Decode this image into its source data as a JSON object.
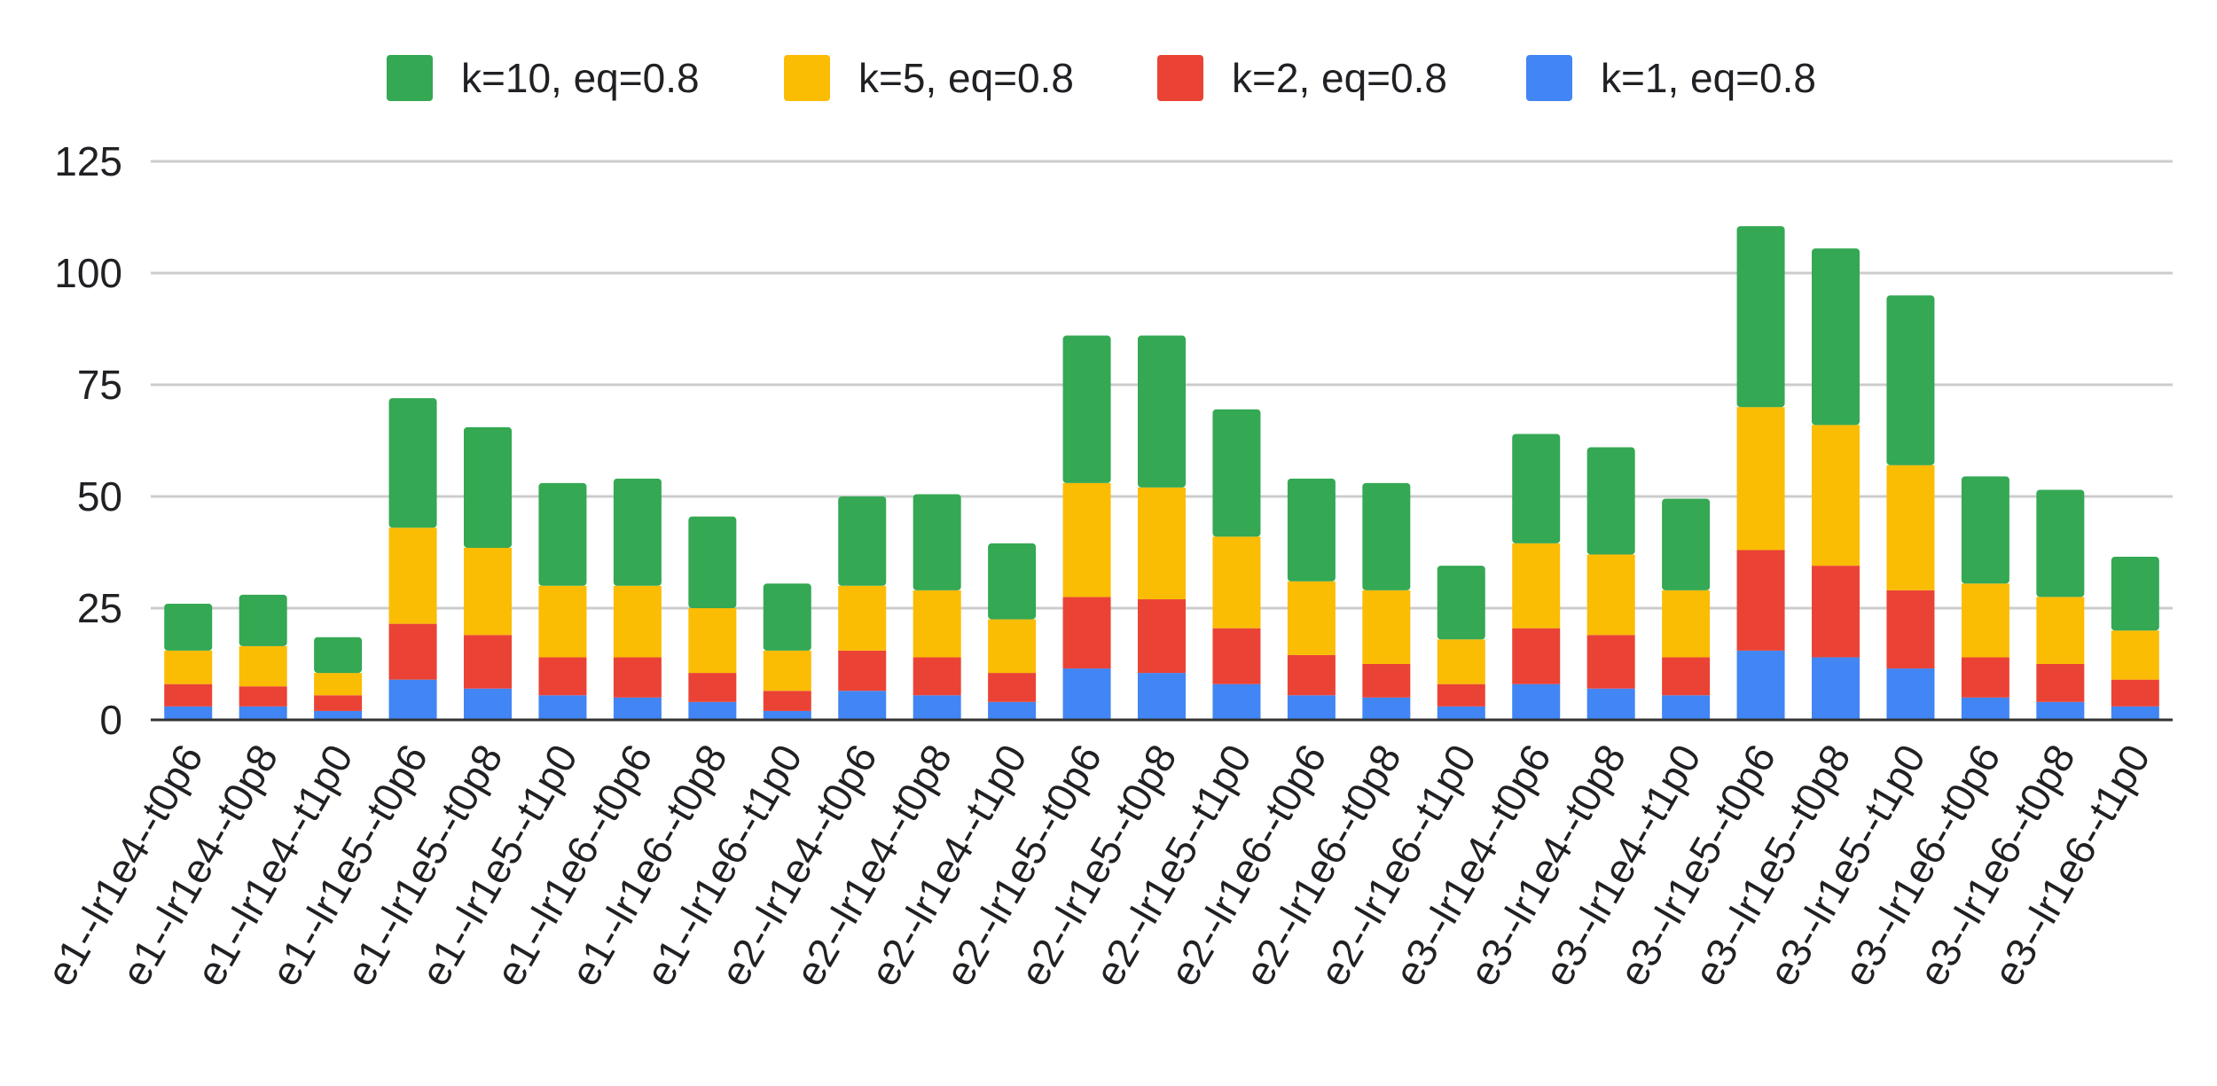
{
  "chart_data": {
    "type": "bar",
    "stacked": true,
    "title": "",
    "xlabel": "",
    "ylabel": "",
    "ylim": [
      0,
      125
    ],
    "yticks": [
      0,
      25,
      50,
      75,
      100,
      125
    ],
    "grid": true,
    "legend_position": "top",
    "categories": [
      "e1--lr1e4--t0p6",
      "e1--lr1e4--t0p8",
      "e1--lr1e4--t1p0",
      "e1--lr1e5--t0p6",
      "e1--lr1e5--t0p8",
      "e1--lr1e5--t1p0",
      "e1--lr1e6--t0p6",
      "e1--lr1e6--t0p8",
      "e1--lr1e6--t1p0",
      "e2--lr1e4--t0p6",
      "e2--lr1e4--t0p8",
      "e2--lr1e4--t1p0",
      "e2--lr1e5--t0p6",
      "e2--lr1e5--t0p8",
      "e2--lr1e5--t1p0",
      "e2--lr1e6--t0p6",
      "e2--lr1e6--t0p8",
      "e2--lr1e6--t1p0",
      "e3--lr1e4--t0p6",
      "e3--lr1e4--t0p8",
      "e3--lr1e4--t1p0",
      "e3--lr1e5--t0p6",
      "e3--lr1e5--t0p8",
      "e3--lr1e5--t1p0",
      "e3--lr1e6--t0p6",
      "e3--lr1e6--t0p8",
      "e3--lr1e6--t1p0"
    ],
    "series": [
      {
        "name": "k=1, eq=0.8",
        "color": "#4285F4",
        "values": [
          3,
          3,
          2,
          9,
          7,
          5.5,
          5,
          4,
          2,
          6.5,
          5.5,
          4,
          11.5,
          10.5,
          8,
          5.5,
          5,
          3,
          8,
          7,
          5.5,
          15.5,
          14,
          11.5,
          5,
          4,
          3
        ]
      },
      {
        "name": "k=2, eq=0.8",
        "color": "#EA4335",
        "values": [
          5,
          4.5,
          3.5,
          12.5,
          12,
          8.5,
          9,
          6.5,
          4.5,
          9,
          8.5,
          6.5,
          16,
          16.5,
          12.5,
          9,
          7.5,
          5,
          12.5,
          12,
          8.5,
          22.5,
          20.5,
          17.5,
          9,
          8.5,
          6
        ]
      },
      {
        "name": "k=5, eq=0.8",
        "color": "#FBBC04",
        "values": [
          7.5,
          9,
          5,
          21.5,
          19.5,
          16,
          16,
          14.5,
          9,
          14.5,
          15,
          12,
          25.5,
          25,
          20.5,
          16.5,
          16.5,
          10,
          19,
          18,
          15,
          32,
          31.5,
          28,
          16.5,
          15,
          11
        ]
      },
      {
        "name": "k=10, eq=0.8",
        "color": "#34A853",
        "values": [
          10.5,
          11.5,
          8,
          29,
          27,
          23,
          24,
          20.5,
          15,
          20,
          21.5,
          17,
          33,
          34,
          28.5,
          23,
          24,
          16.5,
          24.5,
          24,
          20.5,
          40.5,
          39.5,
          38,
          24,
          24,
          16.5
        ]
      }
    ],
    "legend_order": [
      "k=10, eq=0.8",
      "k=5, eq=0.8",
      "k=2, eq=0.8",
      "k=1, eq=0.8"
    ]
  }
}
